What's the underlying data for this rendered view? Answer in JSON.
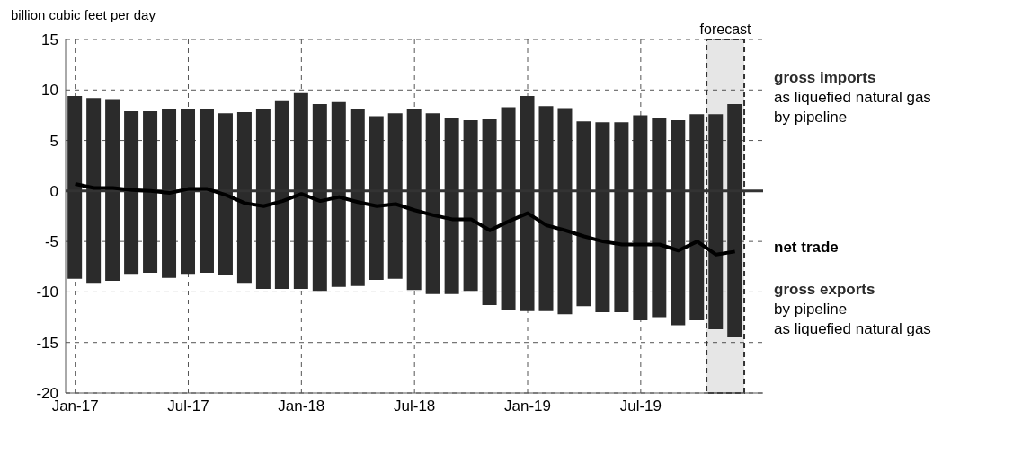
{
  "chart_data": {
    "type": "bar",
    "ylabel": "billion cubic feet per day",
    "x": [
      "2017-01",
      "2017-02",
      "2017-03",
      "2017-04",
      "2017-05",
      "2017-06",
      "2017-07",
      "2017-08",
      "2017-09",
      "2017-10",
      "2017-11",
      "2017-12",
      "2018-01",
      "2018-02",
      "2018-03",
      "2018-04",
      "2018-05",
      "2018-06",
      "2018-07",
      "2018-08",
      "2018-09",
      "2018-10",
      "2018-11",
      "2018-12",
      "2019-01",
      "2019-02",
      "2019-03",
      "2019-04",
      "2019-05",
      "2019-06",
      "2019-07",
      "2019-08",
      "2019-09",
      "2019-10",
      "2019-11",
      "2019-12"
    ],
    "series": [
      {
        "name": "gross imports",
        "color": "#2b2b2b",
        "values": [
          9.4,
          9.2,
          9.1,
          7.9,
          7.9,
          8.1,
          8.1,
          8.1,
          7.7,
          7.8,
          8.1,
          8.9,
          9.7,
          8.6,
          8.8,
          8.1,
          7.4,
          7.7,
          8.1,
          7.7,
          7.2,
          7.0,
          7.1,
          8.3,
          9.4,
          8.4,
          8.2,
          6.9,
          6.8,
          6.8,
          7.5,
          7.2,
          7.0,
          7.6,
          7.6,
          8.6
        ]
      },
      {
        "name": "gross exports",
        "color": "#2b2b2b",
        "values": [
          -8.7,
          -9.1,
          -8.9,
          -8.2,
          -8.1,
          -8.6,
          -8.2,
          -8.1,
          -8.3,
          -9.1,
          -9.7,
          -9.7,
          -9.7,
          -9.9,
          -9.5,
          -9.4,
          -8.8,
          -8.7,
          -9.8,
          -10.2,
          -10.2,
          -9.9,
          -11.3,
          -11.8,
          -11.9,
          -11.9,
          -12.2,
          -11.4,
          -12.0,
          -12.0,
          -12.8,
          -12.5,
          -13.3,
          -12.8,
          -13.7,
          -14.5
        ]
      },
      {
        "name": "net trade",
        "type": "line",
        "color": "#000000",
        "values": [
          0.7,
          0.3,
          0.3,
          0.1,
          0.0,
          -0.2,
          0.2,
          0.2,
          -0.4,
          -1.2,
          -1.5,
          -1.0,
          -0.3,
          -1.0,
          -0.6,
          -1.1,
          -1.5,
          -1.3,
          -1.9,
          -2.4,
          -2.8,
          -2.8,
          -3.9,
          -3.0,
          -2.2,
          -3.4,
          -3.9,
          -4.5,
          -5.0,
          -5.3,
          -5.3,
          -5.3,
          -5.9,
          -5.0,
          -6.3,
          -6.0
        ]
      }
    ],
    "stacked": true,
    "annotations": [
      "as liquefied natural gas",
      "by pipeline",
      "by pipeline",
      "as liquefied natural gas"
    ],
    "xlim": [
      "2016-12-16",
      "2020-01-16"
    ],
    "xticks": [
      {
        "value": "2017-01",
        "label": "Jan-17"
      },
      {
        "value": "2017-07",
        "label": "Jul-17"
      },
      {
        "value": "2018-01",
        "label": "Jan-18"
      },
      {
        "value": "2018-07",
        "label": "Jul-18"
      },
      {
        "value": "2019-01",
        "label": "Jan-19"
      },
      {
        "value": "2019-07",
        "label": "Jul-19"
      }
    ],
    "ylim": [
      -20,
      15
    ],
    "yticks": [
      -20,
      -15,
      -10,
      -5,
      0,
      5,
      10,
      15
    ],
    "ref_lines": [
      {
        "axis": "y",
        "value": 0,
        "color": "#333333",
        "line_style": "solid"
      }
    ],
    "bands": [
      {
        "axis": "x",
        "from": "2019-10-16",
        "to": "2019-12-16",
        "label": "forecast",
        "color": "#333333"
      }
    ],
    "grid": true,
    "legend": "right",
    "line_style": "solid",
    "marker": "none"
  }
}
